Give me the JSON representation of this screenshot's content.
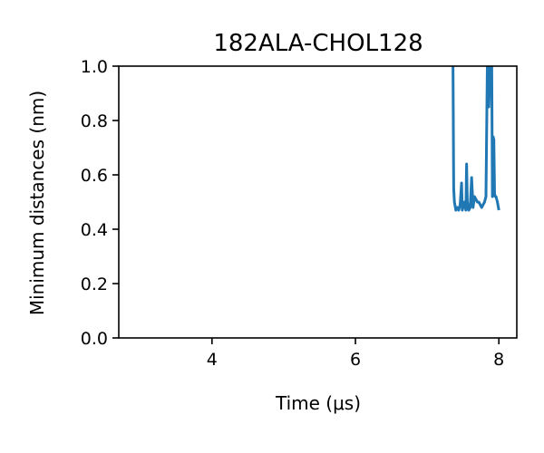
{
  "chart_data": {
    "type": "line",
    "title": "182ALA-CHOL128",
    "xlabel": "Time (μs)",
    "ylabel": "Minimum distances (nm)",
    "xlim": [
      2.7,
      8.25
    ],
    "ylim": [
      0.0,
      1.0
    ],
    "xticks": [
      4,
      6,
      8
    ],
    "yticks": [
      0.0,
      0.2,
      0.4,
      0.6,
      0.8,
      1.0
    ],
    "xtick_labels": [
      "4",
      "6",
      "8"
    ],
    "ytick_labels": [
      "0.0",
      "0.2",
      "0.4",
      "0.6",
      "0.8",
      "1.0"
    ],
    "grid": false,
    "series": [
      {
        "color": "#1f77b4",
        "x": [
          7.36,
          7.37,
          7.38,
          7.4,
          7.42,
          7.44,
          7.46,
          7.48,
          7.49,
          7.5,
          7.52,
          7.54,
          7.55,
          7.56,
          7.58,
          7.6,
          7.62,
          7.64,
          7.65,
          7.66,
          7.68,
          7.7,
          7.72,
          7.74,
          7.76,
          7.78,
          7.8,
          7.82,
          7.84,
          7.85,
          7.86,
          7.88,
          7.9,
          7.91,
          7.92,
          7.93,
          7.94,
          7.95,
          7.96,
          7.98,
          8.0
        ],
        "y": [
          1.02,
          0.55,
          0.5,
          0.47,
          0.48,
          0.47,
          0.49,
          0.57,
          0.47,
          0.48,
          0.5,
          0.47,
          0.64,
          0.5,
          0.47,
          0.48,
          0.59,
          0.48,
          0.5,
          0.52,
          0.51,
          0.5,
          0.5,
          0.49,
          0.48,
          0.49,
          0.5,
          0.52,
          1.02,
          1.02,
          0.85,
          1.02,
          1.02,
          0.52,
          0.74,
          0.73,
          0.53,
          0.52,
          0.52,
          0.5,
          0.47
        ]
      }
    ]
  }
}
